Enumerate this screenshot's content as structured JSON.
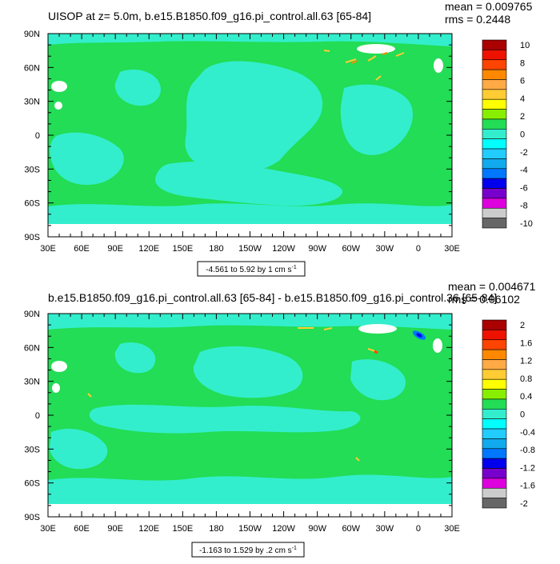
{
  "colors": {
    "background_level": "#22dd55",
    "secondary_level": "#33eecc",
    "land": "#ffffff",
    "axis": "#000000"
  },
  "chart_data": [
    {
      "type": "heatmap",
      "title": "UISOP at z=   5.0m, b.e15.B1850.f09_g16.pi_control.all.63 [65-84]",
      "stats": [
        "mean = 0.009765",
        "rms = 0.2448"
      ],
      "x_ticks": [
        "30E",
        "60E",
        "90E",
        "120E",
        "150E",
        "180",
        "150W",
        "120W",
        "90W",
        "60W",
        "30W",
        "0",
        "30E"
      ],
      "y_ticks": [
        "90N",
        "60N",
        "30N",
        "0",
        "30S",
        "60S",
        "90S"
      ],
      "xlim": [
        30,
        390
      ],
      "ylim": [
        -90,
        90
      ],
      "range_label": "-4.561 to 5.92 by 1 cm s",
      "range_unit_superscript": "-1",
      "colorbar": {
        "labels": [
          "10",
          "8",
          "6",
          "4",
          "2",
          "0",
          "-2",
          "-4",
          "-6",
          "-8",
          "-10"
        ],
        "colors": [
          "#aa0000",
          "#ee1100",
          "#ff4400",
          "#ff8800",
          "#ffaa44",
          "#ffcc33",
          "#ffff00",
          "#88ee00",
          "#22dd55",
          "#33eecc",
          "#00ffff",
          "#22ccff",
          "#11aaee",
          "#0077ff",
          "#0000ee",
          "#7700cc",
          "#dd00dd",
          "#cccccc",
          "#666666"
        ]
      }
    },
    {
      "type": "heatmap",
      "title": "b.e15.B1850.f09_g16.pi_control.all.63 [65-84] - b.e15.B1850.f09_g16.pi_control.36 [65-84]",
      "stats": [
        "mean = 0.004671",
        "rms = 0.06102"
      ],
      "x_ticks": [
        "30E",
        "60E",
        "90E",
        "120E",
        "150E",
        "180",
        "150W",
        "120W",
        "90W",
        "60W",
        "30W",
        "0",
        "30E"
      ],
      "y_ticks": [
        "90N",
        "60N",
        "30N",
        "0",
        "30S",
        "60S",
        "90S"
      ],
      "xlim": [
        30,
        390
      ],
      "ylim": [
        -90,
        90
      ],
      "range_label": "-1.163 to 1.529 by .2 cm s",
      "range_unit_superscript": "-1",
      "colorbar": {
        "labels": [
          "2",
          "1.6",
          "1.2",
          "0.8",
          "0.4",
          "0",
          "-0.4",
          "-0.8",
          "-1.2",
          "-1.6",
          "-2"
        ],
        "colors": [
          "#aa0000",
          "#ee1100",
          "#ff4400",
          "#ff8800",
          "#ffaa44",
          "#ffcc33",
          "#ffff00",
          "#88ee00",
          "#22dd55",
          "#33eecc",
          "#00ffff",
          "#22ccff",
          "#11aaee",
          "#0077ff",
          "#0000ee",
          "#7700cc",
          "#dd00dd",
          "#cccccc",
          "#666666"
        ]
      }
    }
  ]
}
